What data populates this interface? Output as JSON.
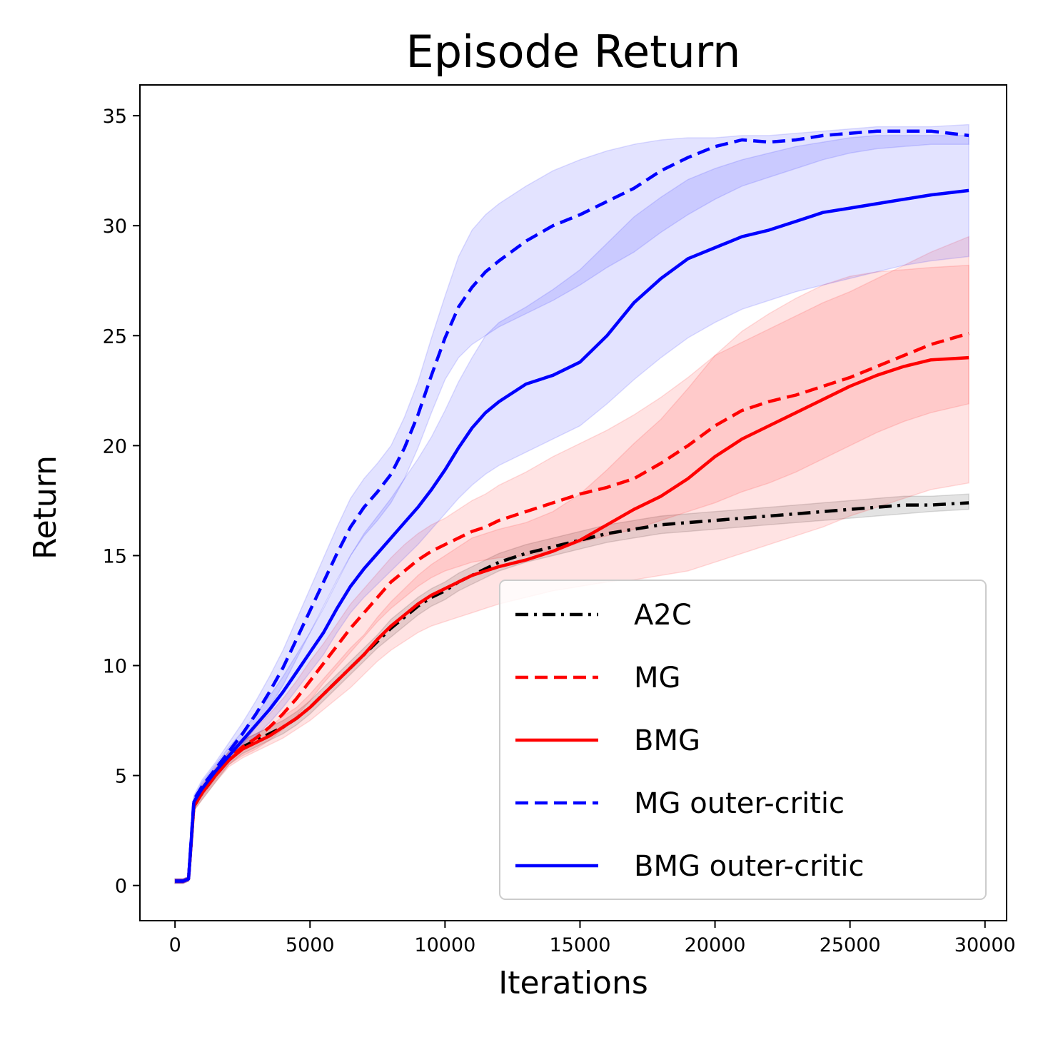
{
  "chart_data": {
    "type": "line",
    "title": "Episode Return",
    "xlabel": "Iterations",
    "ylabel": "Return",
    "xlim": [
      -1300,
      30800
    ],
    "ylim": [
      -1.6,
      36.4
    ],
    "xticks": [
      0,
      5000,
      10000,
      15000,
      20000,
      25000,
      30000
    ],
    "yticks": [
      0,
      5,
      10,
      15,
      20,
      25,
      30,
      35
    ],
    "grid": false,
    "legend_position": "bottom-right",
    "x": [
      0,
      300,
      500,
      700,
      1000,
      1500,
      2000,
      2500,
      3000,
      3500,
      4000,
      4500,
      5000,
      5500,
      6000,
      6500,
      7000,
      7500,
      8000,
      8500,
      9000,
      9500,
      10000,
      10500,
      11000,
      11500,
      12000,
      13000,
      14000,
      15000,
      16000,
      17000,
      18000,
      19000,
      20000,
      21000,
      22000,
      23000,
      24000,
      25000,
      26000,
      27000,
      28000,
      29400
    ],
    "series": [
      {
        "name": "A2C",
        "color": "#000000",
        "dash": "dashdot",
        "values": [
          0.2,
          0.2,
          0.3,
          3.6,
          4.2,
          5.0,
          5.8,
          6.3,
          6.6,
          6.9,
          7.2,
          7.6,
          8.1,
          8.7,
          9.3,
          9.9,
          10.5,
          11.1,
          11.7,
          12.2,
          12.7,
          13.1,
          13.4,
          13.8,
          14.1,
          14.4,
          14.7,
          15.1,
          15.4,
          15.7,
          16.0,
          16.2,
          16.4,
          16.5,
          16.6,
          16.7,
          16.8,
          16.9,
          17.0,
          17.1,
          17.2,
          17.3,
          17.3,
          17.4
        ],
        "lower": [
          0.1,
          0.1,
          0.2,
          3.4,
          3.9,
          4.7,
          5.5,
          6.0,
          6.3,
          6.6,
          6.9,
          7.3,
          7.8,
          8.4,
          9.0,
          9.6,
          10.2,
          10.8,
          11.3,
          11.8,
          12.3,
          12.7,
          13.0,
          13.4,
          13.7,
          14.0,
          14.3,
          14.7,
          15.0,
          15.3,
          15.6,
          15.8,
          16.0,
          16.1,
          16.2,
          16.3,
          16.4,
          16.5,
          16.6,
          16.7,
          16.8,
          16.9,
          17.0,
          17.1
        ],
        "upper": [
          0.3,
          0.3,
          0.4,
          3.8,
          4.5,
          5.3,
          6.1,
          6.6,
          6.9,
          7.2,
          7.5,
          7.9,
          8.4,
          9.0,
          9.6,
          10.2,
          10.8,
          11.4,
          12.1,
          12.6,
          13.1,
          13.5,
          13.8,
          14.2,
          14.5,
          14.8,
          15.1,
          15.5,
          15.8,
          16.1,
          16.4,
          16.6,
          16.8,
          16.9,
          17.0,
          17.1,
          17.2,
          17.3,
          17.4,
          17.5,
          17.6,
          17.7,
          17.7,
          17.8
        ]
      },
      {
        "name": "MG",
        "color": "#ff0000",
        "dash": "dashed",
        "values": [
          0.2,
          0.2,
          0.3,
          3.7,
          4.3,
          5.1,
          5.8,
          6.3,
          6.7,
          7.2,
          7.8,
          8.5,
          9.3,
          10.1,
          10.9,
          11.7,
          12.4,
          13.1,
          13.8,
          14.3,
          14.8,
          15.2,
          15.5,
          15.8,
          16.1,
          16.3,
          16.6,
          17.0,
          17.4,
          17.8,
          18.1,
          18.5,
          19.2,
          20.0,
          20.9,
          21.6,
          22.0,
          22.3,
          22.7,
          23.1,
          23.6,
          24.1,
          24.6,
          25.1
        ],
        "lower": [
          0.1,
          0.1,
          0.2,
          3.5,
          4.0,
          4.8,
          5.5,
          5.9,
          6.2,
          6.6,
          7.1,
          7.7,
          8.4,
          9.2,
          9.9,
          10.6,
          11.3,
          12.0,
          12.6,
          13.1,
          13.6,
          14.0,
          14.3,
          14.5,
          14.7,
          14.8,
          14.9,
          15.0,
          15.2,
          15.6,
          15.9,
          16.2,
          16.6,
          17.0,
          17.4,
          17.9,
          18.3,
          18.8,
          19.4,
          20.0,
          20.6,
          21.1,
          21.5,
          21.9
        ],
        "upper": [
          0.3,
          0.3,
          0.4,
          3.9,
          4.6,
          5.4,
          6.1,
          6.7,
          7.2,
          7.8,
          8.5,
          9.3,
          10.2,
          11.0,
          11.9,
          12.8,
          13.5,
          14.2,
          14.9,
          15.5,
          16.0,
          16.4,
          16.7,
          17.1,
          17.5,
          17.8,
          18.2,
          18.8,
          19.5,
          20.1,
          20.7,
          21.4,
          22.2,
          23.1,
          24.1,
          24.7,
          25.3,
          25.9,
          26.5,
          27.0,
          27.6,
          28.2,
          28.8,
          29.5
        ]
      },
      {
        "name": "BMG",
        "color": "#ff0000",
        "dash": "solid",
        "values": [
          0.2,
          0.2,
          0.3,
          3.6,
          4.2,
          5.0,
          5.7,
          6.2,
          6.5,
          6.8,
          7.2,
          7.6,
          8.1,
          8.7,
          9.3,
          9.9,
          10.5,
          11.2,
          11.8,
          12.3,
          12.8,
          13.2,
          13.5,
          13.8,
          14.1,
          14.3,
          14.5,
          14.8,
          15.2,
          15.7,
          16.4,
          17.1,
          17.7,
          18.5,
          19.5,
          20.3,
          20.9,
          21.5,
          22.1,
          22.7,
          23.2,
          23.6,
          23.9,
          24.0
        ],
        "lower": [
          0.1,
          0.1,
          0.2,
          3.4,
          3.9,
          4.7,
          5.4,
          5.8,
          6.1,
          6.4,
          6.7,
          7.1,
          7.5,
          8.0,
          8.5,
          9.0,
          9.6,
          10.2,
          10.7,
          11.1,
          11.5,
          11.8,
          12.0,
          12.2,
          12.4,
          12.6,
          12.8,
          13.1,
          13.4,
          13.6,
          13.8,
          13.9,
          14.1,
          14.3,
          14.7,
          15.1,
          15.5,
          15.9,
          16.3,
          16.8,
          17.2,
          17.6,
          18.0,
          18.3
        ],
        "upper": [
          0.3,
          0.3,
          0.4,
          3.8,
          4.5,
          5.3,
          6.0,
          6.6,
          6.9,
          7.2,
          7.7,
          8.1,
          8.7,
          9.4,
          10.1,
          10.8,
          11.4,
          12.2,
          12.9,
          13.5,
          14.1,
          14.6,
          15.0,
          15.4,
          15.8,
          16.0,
          16.2,
          16.5,
          17.0,
          17.8,
          18.9,
          20.1,
          21.2,
          22.6,
          24.1,
          25.2,
          26.0,
          26.7,
          27.3,
          27.7,
          27.9,
          28.0,
          28.1,
          28.2
        ]
      },
      {
        "name": "MG outer-critic",
        "color": "#0000ff",
        "dash": "dashed",
        "values": [
          0.2,
          0.2,
          0.3,
          3.9,
          4.5,
          5.3,
          6.1,
          6.9,
          7.8,
          8.8,
          9.9,
          11.2,
          12.5,
          13.8,
          15.1,
          16.3,
          17.2,
          17.9,
          18.7,
          19.9,
          21.4,
          23.2,
          24.9,
          26.3,
          27.2,
          27.9,
          28.4,
          29.3,
          30.0,
          30.5,
          31.1,
          31.7,
          32.5,
          33.1,
          33.6,
          33.9,
          33.8,
          33.9,
          34.1,
          34.2,
          34.3,
          34.3,
          34.3,
          34.1
        ],
        "lower": [
          0.1,
          0.1,
          0.2,
          3.7,
          4.2,
          5.0,
          5.7,
          6.4,
          7.2,
          8.1,
          9.1,
          10.3,
          11.5,
          12.7,
          13.9,
          15.0,
          15.9,
          16.6,
          17.4,
          18.5,
          19.9,
          21.5,
          23.0,
          24.0,
          24.6,
          25.0,
          25.4,
          26.0,
          26.6,
          27.3,
          28.1,
          28.8,
          29.7,
          30.5,
          31.2,
          31.8,
          32.2,
          32.6,
          33.0,
          33.3,
          33.5,
          33.6,
          33.7,
          33.7
        ],
        "upper": [
          0.3,
          0.3,
          0.4,
          4.1,
          4.8,
          5.6,
          6.5,
          7.4,
          8.4,
          9.5,
          10.7,
          12.1,
          13.5,
          14.9,
          16.3,
          17.6,
          18.5,
          19.2,
          20.0,
          21.3,
          22.9,
          24.9,
          26.8,
          28.6,
          29.8,
          30.5,
          31.0,
          31.8,
          32.5,
          33.0,
          33.4,
          33.7,
          33.9,
          34.0,
          34.0,
          34.1,
          34.1,
          34.2,
          34.3,
          34.4,
          34.5,
          34.5,
          34.5,
          34.6
        ]
      },
      {
        "name": "BMG outer-critic",
        "color": "#0000ff",
        "dash": "solid",
        "values": [
          0.2,
          0.2,
          0.3,
          3.8,
          4.4,
          5.2,
          5.9,
          6.6,
          7.3,
          8.0,
          8.8,
          9.7,
          10.6,
          11.5,
          12.6,
          13.6,
          14.4,
          15.1,
          15.8,
          16.5,
          17.2,
          18.0,
          18.9,
          19.9,
          20.8,
          21.5,
          22.0,
          22.8,
          23.2,
          23.8,
          25.0,
          26.5,
          27.6,
          28.5,
          29.0,
          29.5,
          29.8,
          30.2,
          30.6,
          30.8,
          31.0,
          31.2,
          31.4,
          31.6
        ],
        "lower": [
          0.1,
          0.1,
          0.2,
          3.6,
          4.1,
          4.9,
          5.6,
          6.2,
          6.8,
          7.4,
          8.1,
          8.9,
          9.7,
          10.5,
          11.5,
          12.4,
          13.1,
          13.7,
          14.3,
          14.9,
          15.5,
          16.2,
          16.9,
          17.6,
          18.2,
          18.7,
          19.1,
          19.7,
          20.3,
          20.9,
          21.9,
          23.0,
          24.0,
          24.9,
          25.6,
          26.2,
          26.6,
          27.0,
          27.3,
          27.6,
          27.9,
          28.2,
          28.4,
          28.6
        ],
        "upper": [
          0.3,
          0.3,
          0.4,
          4.0,
          4.7,
          5.5,
          6.3,
          7.0,
          7.8,
          8.6,
          9.5,
          10.5,
          11.5,
          12.6,
          13.8,
          15.0,
          16.0,
          16.8,
          17.6,
          18.5,
          19.4,
          20.4,
          21.6,
          22.9,
          24.0,
          25.0,
          25.6,
          26.3,
          27.1,
          28.0,
          29.2,
          30.4,
          31.3,
          32.1,
          32.6,
          33.0,
          33.3,
          33.6,
          33.8,
          34.0,
          34.1,
          34.1,
          34.1,
          34.1
        ]
      }
    ]
  }
}
